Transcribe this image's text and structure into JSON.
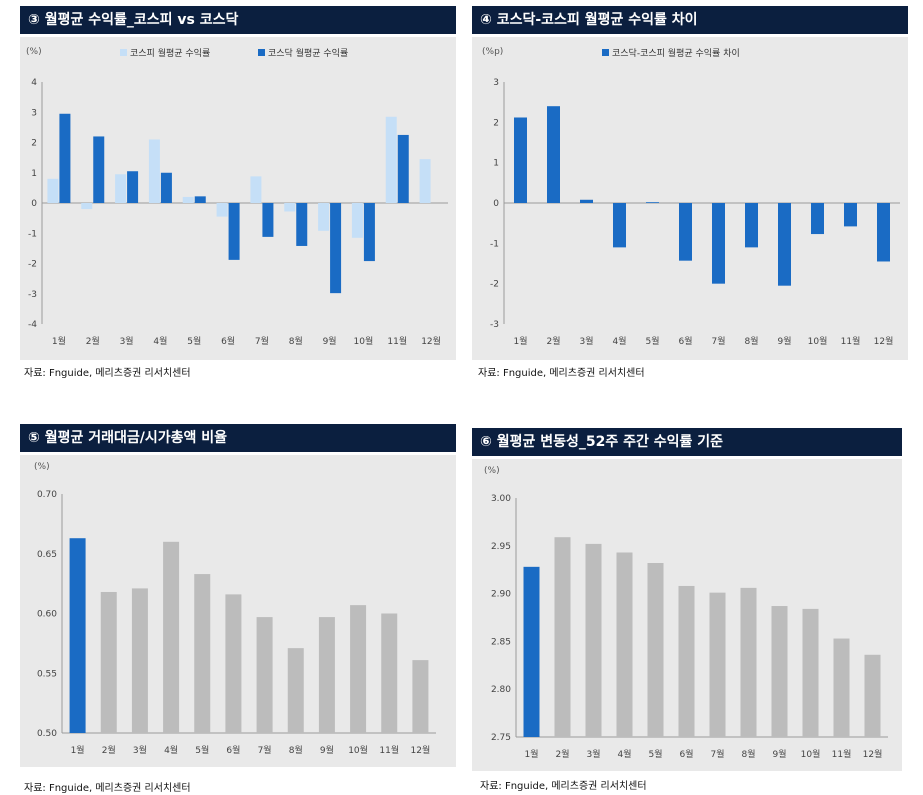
{
  "source_label": "자료: Fnguide, 메리츠증권 리서치센터",
  "colors": {
    "light": "#c5dff7",
    "dark": "#1a6bc4",
    "gray": "#bcbcbc",
    "header": "#0b1f3f",
    "panel": "#e9e9e9"
  },
  "chart_data": [
    {
      "type": "bar",
      "title": "③ 월평균 수익률_코스피 vs 코스닥",
      "unit": "(%)",
      "categories": [
        "1월",
        "2월",
        "3월",
        "4월",
        "5월",
        "6월",
        "7월",
        "8월",
        "9월",
        "10월",
        "11월",
        "12월"
      ],
      "series": [
        {
          "name": "코스피 월평균 수익률",
          "values": [
            0.8,
            -0.2,
            0.95,
            2.1,
            0.2,
            -0.45,
            0.88,
            -0.28,
            -0.92,
            -1.15,
            2.85,
            1.45
          ]
        },
        {
          "name": "코스닥 월평균 수익률",
          "values": [
            2.95,
            2.2,
            1.05,
            1.0,
            0.22,
            -1.88,
            -1.12,
            -1.42,
            -2.98,
            -1.92,
            2.25,
            null
          ]
        }
      ],
      "ylim": [
        -4,
        4
      ],
      "yticks": [
        "4",
        "3",
        "2",
        "1",
        "0",
        "-1",
        "-2",
        "-3",
        "-4"
      ]
    },
    {
      "type": "bar",
      "title": "④ 코스닥-코스피 월평균 수익률 차이",
      "unit": "(%p)",
      "categories": [
        "1월",
        "2월",
        "3월",
        "4월",
        "5월",
        "6월",
        "7월",
        "8월",
        "9월",
        "10월",
        "11월",
        "12월"
      ],
      "series": [
        {
          "name": "코스닥-코스피 월평균 수익률 차이",
          "values": [
            2.12,
            2.4,
            0.08,
            -1.1,
            0.02,
            -1.43,
            -2.0,
            -1.1,
            -2.05,
            -0.77,
            -0.58,
            -1.45
          ]
        }
      ],
      "ylim": [
        -3,
        3
      ],
      "yticks": [
        "3",
        "2",
        "1",
        "0",
        "-1",
        "-2",
        "-3"
      ]
    },
    {
      "type": "bar",
      "title": "⑤ 월평균 거래대금/시가총액 비율",
      "unit": "(%)",
      "categories": [
        "1월",
        "2월",
        "3월",
        "4월",
        "5월",
        "6월",
        "7월",
        "8월",
        "9월",
        "10월",
        "11월",
        "12월"
      ],
      "values": [
        0.663,
        0.618,
        0.621,
        0.66,
        0.633,
        0.616,
        0.597,
        0.571,
        0.597,
        0.607,
        0.6,
        0.561
      ],
      "highlight_index": 0,
      "ylim": [
        0.5,
        0.7
      ],
      "yticks": [
        "0.70",
        "0.65",
        "0.60",
        "0.55",
        "0.50"
      ]
    },
    {
      "type": "bar",
      "title": "⑥ 월평균 변동성_52주 주간 수익률 기준",
      "unit": "(%)",
      "categories": [
        "1월",
        "2월",
        "3월",
        "4월",
        "5월",
        "6월",
        "7월",
        "8월",
        "9월",
        "10월",
        "11월",
        "12월"
      ],
      "values": [
        2.928,
        2.959,
        2.952,
        2.943,
        2.932,
        2.908,
        2.901,
        2.906,
        2.887,
        2.884,
        2.853,
        2.836
      ],
      "highlight_index": 0,
      "ylim": [
        2.75,
        3.0
      ],
      "yticks": [
        "3.00",
        "2.95",
        "2.90",
        "2.85",
        "2.80",
        "2.75"
      ]
    }
  ]
}
